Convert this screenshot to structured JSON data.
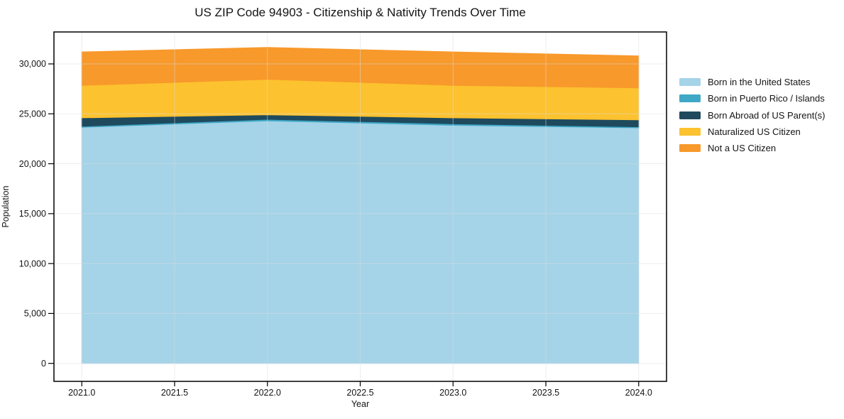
{
  "title": "US ZIP Code 94903 - Citizenship & Nativity Trends Over Time",
  "chart_data": {
    "type": "area",
    "stacked": true,
    "title": "US ZIP Code 94903 - Citizenship & Nativity Trends Over Time",
    "xlabel": "Year",
    "ylabel": "Population",
    "x": [
      2021,
      2022,
      2023,
      2024
    ],
    "series": [
      {
        "name": "Born in the United States",
        "color": "#A5D3E8",
        "values": [
          23650,
          24300,
          23850,
          23600
        ]
      },
      {
        "name": "Born in Puerto Rico / Islands",
        "color": "#3FA8C6",
        "values": [
          100,
          150,
          150,
          100
        ]
      },
      {
        "name": "Born Abroad of US Parent(s)",
        "color": "#1F4A5E",
        "values": [
          850,
          450,
          600,
          700
        ]
      },
      {
        "name": "Naturalized US Citizen",
        "color": "#FCC22F",
        "values": [
          3250,
          3550,
          3250,
          3200
        ]
      },
      {
        "name": "Not a US Citizen",
        "color": "#F8992B",
        "values": [
          3350,
          3200,
          3350,
          3200
        ]
      }
    ],
    "totals": [
      31200,
      31650,
      31200,
      30800
    ],
    "xlim": [
      2020.85,
      2024.15
    ],
    "ylim": [
      -1800,
      33200
    ],
    "xticks": {
      "values": [
        2021.0,
        2021.5,
        2022.0,
        2022.5,
        2023.0,
        2023.5,
        2024.0
      ],
      "labels": [
        "2021.0",
        "2021.5",
        "2022.0",
        "2022.5",
        "2023.0",
        "2023.5",
        "2024.0"
      ]
    },
    "yticks": {
      "values": [
        0,
        5000,
        10000,
        15000,
        20000,
        25000,
        30000
      ],
      "labels": [
        "0",
        "5,000",
        "10,000",
        "15,000",
        "20,000",
        "25,000",
        "30,000"
      ]
    },
    "grid": true,
    "legend_position": "right-outside"
  },
  "colors": {
    "background": "#FFFFFF",
    "grid": "#DDDDDD",
    "spine": "#000000",
    "text": "#141414"
  }
}
